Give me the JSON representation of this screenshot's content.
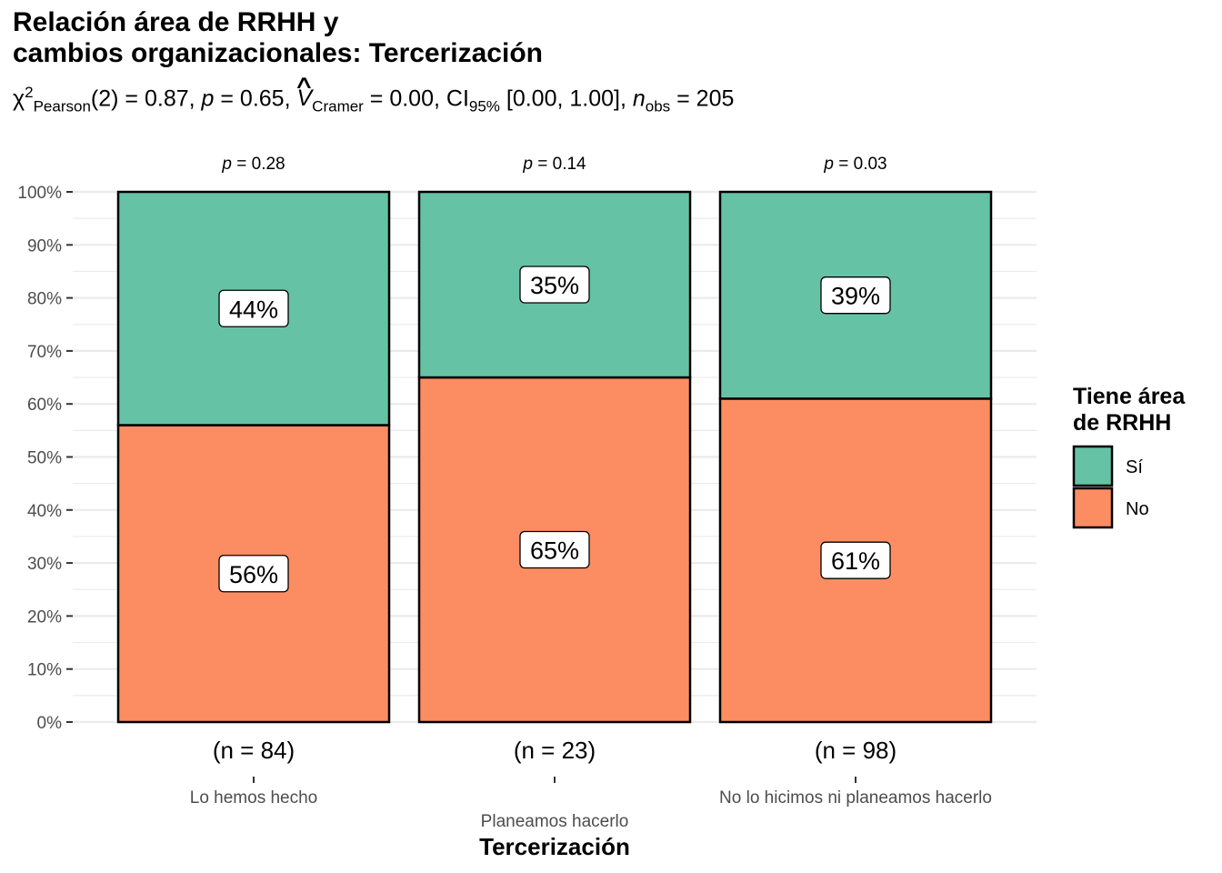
{
  "title_lines": [
    "Relación área de RRHH y",
    "cambios organizacionales: Tercerización"
  ],
  "subtitle": {
    "chi": "χ",
    "chi_sup": "2",
    "chi_sub": "Pearson",
    "df": "(2) = 0.87, ",
    "p_sym": "p",
    "p_val": " = 0.65, ",
    "v_sym": "V",
    "v_sub": "Cramer",
    "v_val": " = 0.00, CI",
    "ci_sub": "95%",
    "ci_val": " [0.00, 1.00], ",
    "n_sym": "n",
    "n_sub": "obs",
    "n_val": " = 205"
  },
  "colors": {
    "si": "#66C2A5",
    "no": "#FC8D62",
    "grid": "#ebebeb",
    "outline": "#000000"
  },
  "chart_data": {
    "type": "bar",
    "stacked": true,
    "xlabel": "Tercerización",
    "ylabel": "",
    "ylim": [
      0,
      100
    ],
    "yticks": [
      "0%",
      "10%",
      "20%",
      "30%",
      "40%",
      "50%",
      "60%",
      "70%",
      "80%",
      "90%",
      "100%"
    ],
    "categories": [
      "Lo hemos hecho",
      "Planeamos hacerlo",
      "No lo hicimos ni planeamos hacerlo"
    ],
    "counts": [
      "(n = 84)",
      "(n = 23)",
      "(n = 98)"
    ],
    "pvalues": [
      "= 0.28",
      "= 0.14",
      "= 0.03"
    ],
    "p_symbol": "p",
    "series": [
      {
        "name": "No",
        "values": [
          56,
          65,
          61
        ],
        "labels": [
          "56%",
          "65%",
          "61%"
        ]
      },
      {
        "name": "Sí",
        "values": [
          44,
          35,
          39
        ],
        "labels": [
          "44%",
          "35%",
          "39%"
        ]
      }
    ],
    "legend": {
      "title_lines": [
        "Tiene área",
        "de RRHH"
      ],
      "items": [
        "Sí",
        "No"
      ],
      "position": "right"
    },
    "grid": true
  }
}
